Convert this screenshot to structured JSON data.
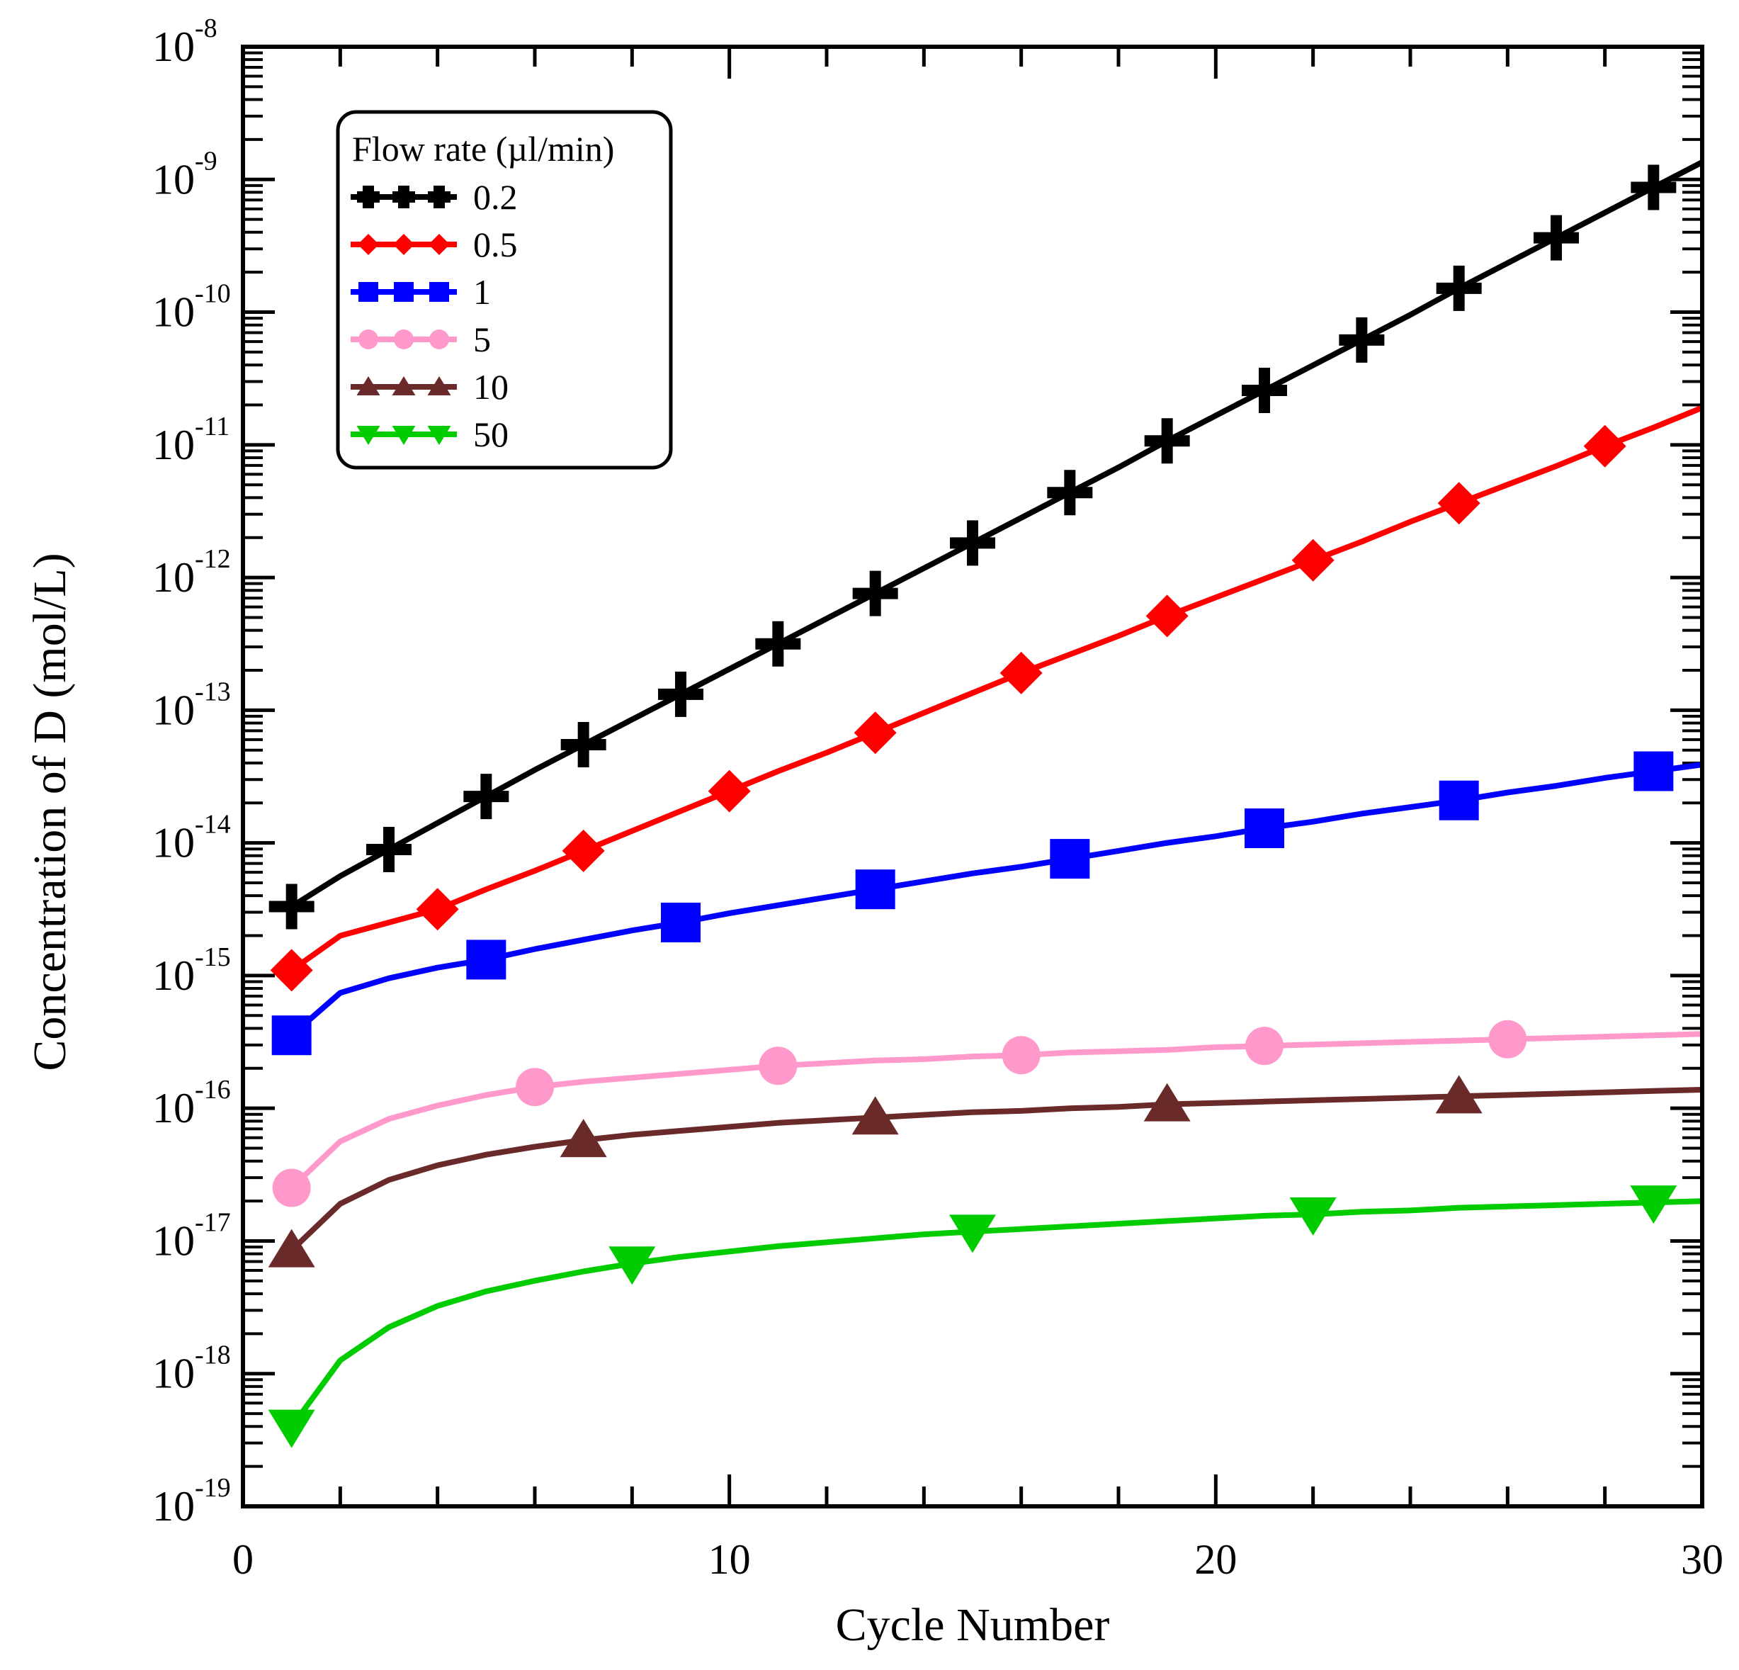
{
  "chart_data": {
    "type": "line",
    "title": "",
    "xlabel": "Cycle Number",
    "ylabel": "Concentration of D (mol/L)",
    "xlim": [
      0,
      30
    ],
    "ylim_log10": [
      -19,
      -8
    ],
    "yscale": "log",
    "x_ticks": [
      0,
      10,
      20,
      30
    ],
    "y_ticks": [
      {
        "base": "10",
        "exp": "-8"
      },
      {
        "base": "10",
        "exp": "-9"
      },
      {
        "base": "10",
        "exp": "-10"
      },
      {
        "base": "10",
        "exp": "-11"
      },
      {
        "base": "10",
        "exp": "-12"
      },
      {
        "base": "10",
        "exp": "-13"
      },
      {
        "base": "10",
        "exp": "-14"
      },
      {
        "base": "10",
        "exp": "-15"
      },
      {
        "base": "10",
        "exp": "-16"
      },
      {
        "base": "10",
        "exp": "-17"
      },
      {
        "base": "10",
        "exp": "-18"
      },
      {
        "base": "10",
        "exp": "-19"
      }
    ],
    "legend": {
      "title": "Flow rate (µl/min)",
      "position": "top-left"
    },
    "series": [
      {
        "name": "0.2",
        "color": "#000000",
        "marker": "plus",
        "x": [
          1,
          2,
          3,
          4,
          5,
          6,
          7,
          8,
          9,
          10,
          11,
          12,
          13,
          14,
          15,
          16,
          17,
          18,
          19,
          20,
          21,
          22,
          23,
          24,
          25,
          26,
          27,
          28,
          29,
          30
        ],
        "log10_y": [
          -14.48,
          -14.25,
          -14.05,
          -13.85,
          -13.65,
          -13.45,
          -13.26,
          -13.07,
          -12.88,
          -12.69,
          -12.5,
          -12.31,
          -12.12,
          -11.93,
          -11.74,
          -11.55,
          -11.36,
          -11.17,
          -10.97,
          -10.78,
          -10.59,
          -10.4,
          -10.21,
          -10.02,
          -9.82,
          -9.63,
          -9.44,
          -9.25,
          -9.06,
          -8.87
        ],
        "marker_x": [
          1,
          3,
          5,
          7,
          9,
          11,
          13,
          15,
          17,
          19,
          21,
          23,
          25,
          27,
          29
        ]
      },
      {
        "name": "0.5",
        "color": "#ff0000",
        "marker": "diamond",
        "x": [
          1,
          2,
          3,
          4,
          5,
          6,
          7,
          8,
          9,
          10,
          11,
          12,
          13,
          14,
          15,
          16,
          17,
          18,
          19,
          20,
          21,
          22,
          23,
          24,
          25,
          26,
          27,
          28,
          29,
          30
        ],
        "log10_y": [
          -14.96,
          -14.7,
          -14.6,
          -14.5,
          -14.35,
          -14.21,
          -14.06,
          -13.91,
          -13.76,
          -13.61,
          -13.46,
          -13.32,
          -13.17,
          -13.02,
          -12.87,
          -12.72,
          -12.58,
          -12.44,
          -12.29,
          -12.15,
          -12.01,
          -11.87,
          -11.73,
          -11.58,
          -11.44,
          -11.3,
          -11.16,
          -11.01,
          -10.87,
          -10.72
        ],
        "marker_x": [
          1,
          4,
          7,
          10,
          13,
          16,
          19,
          22,
          25,
          28
        ]
      },
      {
        "name": "1",
        "color": "#0000ff",
        "marker": "square",
        "x": [
          1,
          2,
          3,
          4,
          5,
          6,
          7,
          8,
          9,
          10,
          11,
          12,
          13,
          14,
          15,
          16,
          17,
          18,
          19,
          20,
          21,
          22,
          23,
          24,
          25,
          26,
          27,
          28,
          29,
          30
        ],
        "log10_y": [
          -15.45,
          -15.13,
          -15.02,
          -14.94,
          -14.88,
          -14.8,
          -14.73,
          -14.66,
          -14.6,
          -14.53,
          -14.47,
          -14.41,
          -14.35,
          -14.29,
          -14.23,
          -14.18,
          -14.12,
          -14.06,
          -14.0,
          -13.95,
          -13.89,
          -13.84,
          -13.78,
          -13.73,
          -13.68,
          -13.62,
          -13.57,
          -13.51,
          -13.46,
          -13.41
        ],
        "marker_x": [
          1,
          5,
          9,
          13,
          17,
          21,
          25,
          29
        ]
      },
      {
        "name": "5",
        "color": "#ff99cc",
        "marker": "circle",
        "x": [
          1,
          2,
          3,
          4,
          5,
          6,
          7,
          8,
          9,
          10,
          11,
          12,
          13,
          14,
          15,
          16,
          17,
          18,
          19,
          20,
          21,
          22,
          23,
          24,
          25,
          26,
          27,
          28,
          29,
          30
        ],
        "log10_y": [
          -16.6,
          -16.25,
          -16.08,
          -15.98,
          -15.9,
          -15.84,
          -15.8,
          -15.77,
          -15.74,
          -15.71,
          -15.68,
          -15.66,
          -15.64,
          -15.63,
          -15.61,
          -15.6,
          -15.58,
          -15.57,
          -15.56,
          -15.54,
          -15.53,
          -15.52,
          -15.51,
          -15.5,
          -15.49,
          -15.48,
          -15.47,
          -15.46,
          -15.45,
          -15.44
        ],
        "marker_x": [
          1,
          6,
          11,
          16,
          21,
          26
        ]
      },
      {
        "name": "10",
        "color": "#6b2a2a",
        "marker": "triangle-up",
        "x": [
          1,
          2,
          3,
          4,
          5,
          6,
          7,
          8,
          9,
          10,
          11,
          12,
          13,
          14,
          15,
          16,
          17,
          18,
          19,
          20,
          21,
          22,
          23,
          24,
          25,
          26,
          27,
          28,
          29,
          30
        ],
        "log10_y": [
          -17.07,
          -16.72,
          -16.54,
          -16.43,
          -16.35,
          -16.29,
          -16.24,
          -16.2,
          -16.17,
          -16.14,
          -16.11,
          -16.09,
          -16.07,
          -16.05,
          -16.03,
          -16.02,
          -16.0,
          -15.99,
          -15.97,
          -15.96,
          -15.95,
          -15.94,
          -15.93,
          -15.92,
          -15.91,
          -15.9,
          -15.89,
          -15.88,
          -15.87,
          -15.86
        ],
        "marker_x": [
          1,
          7,
          13,
          19,
          25
        ]
      },
      {
        "name": "50",
        "color": "#00cc00",
        "marker": "triangle-down",
        "x": [
          1,
          2,
          3,
          4,
          5,
          6,
          7,
          8,
          9,
          10,
          11,
          12,
          13,
          14,
          15,
          16,
          17,
          18,
          19,
          20,
          21,
          22,
          23,
          24,
          25,
          26,
          27,
          28,
          29,
          30
        ],
        "log10_y": [
          -18.4,
          -17.9,
          -17.65,
          -17.49,
          -17.38,
          -17.3,
          -17.23,
          -17.17,
          -17.12,
          -17.08,
          -17.04,
          -17.01,
          -16.98,
          -16.95,
          -16.93,
          -16.91,
          -16.89,
          -16.87,
          -16.85,
          -16.83,
          -16.81,
          -16.8,
          -16.78,
          -16.77,
          -16.75,
          -16.74,
          -16.73,
          -16.72,
          -16.71,
          -16.7
        ],
        "marker_x": [
          1,
          8,
          15,
          22,
          29
        ]
      }
    ]
  }
}
